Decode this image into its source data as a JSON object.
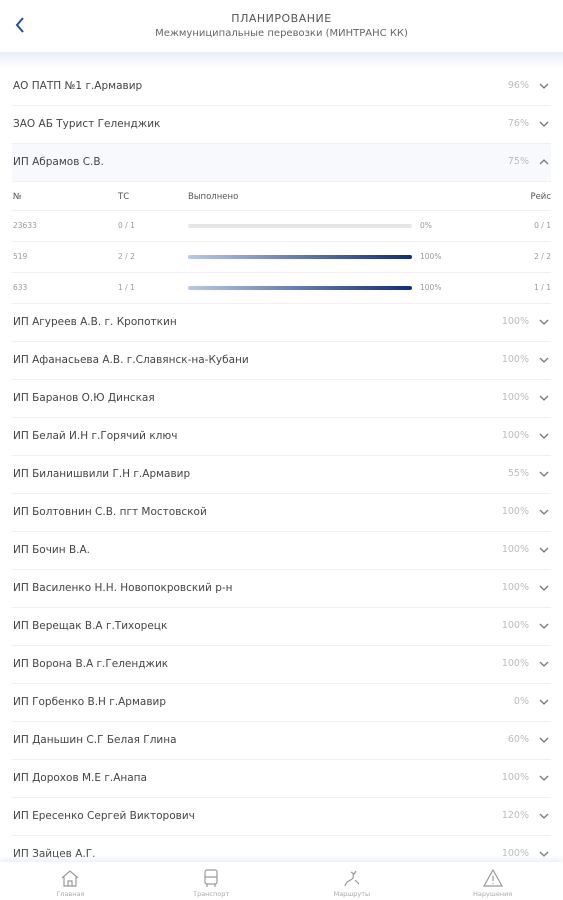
{
  "header": {
    "title": "ПЛАНИРОВАНИЕ",
    "subtitle": "Межмуниципальные перевозки (МИНТРАНС КК)"
  },
  "items": [
    {
      "name": "АО ПАТП №1 г.Армавир",
      "percent": "96%"
    },
    {
      "name": "ЗАО АБ Турист Геленджик",
      "percent": "76%"
    },
    {
      "name": "ИП Абрамов С.В.",
      "percent": "75%",
      "details": {
        "headers": [
          "№",
          "ТС",
          "Выполнено",
          "Рейс"
        ],
        "rows": [
          {
            "number": "23633",
            "vehicles": "0 / 1",
            "done": {
              "value": 0,
              "label": "0%"
            },
            "trips": "0 / 1"
          },
          {
            "number": "519",
            "vehicles": "2 / 2",
            "done": {
              "value": 100,
              "label": "100%"
            },
            "trips": "2 / 2"
          },
          {
            "number": "633",
            "vehicles": "1 / 1",
            "done": {
              "value": 100,
              "label": "100%"
            },
            "trips": "1 / 1"
          }
        ]
      }
    },
    {
      "name": "ИП Агуреев А.В. г. Кропоткин",
      "percent": "100%"
    },
    {
      "name": "ИП Афанасьева А.В. г.Славянск-на-Кубани",
      "percent": "100%"
    },
    {
      "name": "ИП Баранов О.Ю Динская",
      "percent": "100%"
    },
    {
      "name": "ИП Белай И.Н г.Горячий ключ",
      "percent": "100%"
    },
    {
      "name": "ИП Биланишвили Г.Н г.Армавир",
      "percent": "55%"
    },
    {
      "name": "ИП Болтовнин С.В. пгт Мостовской",
      "percent": "100%"
    },
    {
      "name": "ИП Бочин В.А.",
      "percent": "100%"
    },
    {
      "name": "ИП Василенко Н.Н. Новопокровский р-н",
      "percent": "100%"
    },
    {
      "name": "ИП Верещак В.А г.Тихорецк",
      "percent": "100%"
    },
    {
      "name": "ИП Ворона В.А г.Геленджик",
      "percent": "100%"
    },
    {
      "name": "ИП Горбенко В.Н г.Армавир",
      "percent": "0%"
    },
    {
      "name": "ИП Даньшин С.Г Белая Глина",
      "percent": "60%"
    },
    {
      "name": "ИП Дорохов М.Е г.Анапа",
      "percent": "100%"
    },
    {
      "name": "ИП Ересенко Сергей Викторович",
      "percent": "120%"
    },
    {
      "name": "ИП Зайцев А.Г.",
      "percent": "100%"
    }
  ],
  "tabs": [
    "Главная",
    "Транспорт",
    "Маршруты",
    "Нарушения"
  ]
}
